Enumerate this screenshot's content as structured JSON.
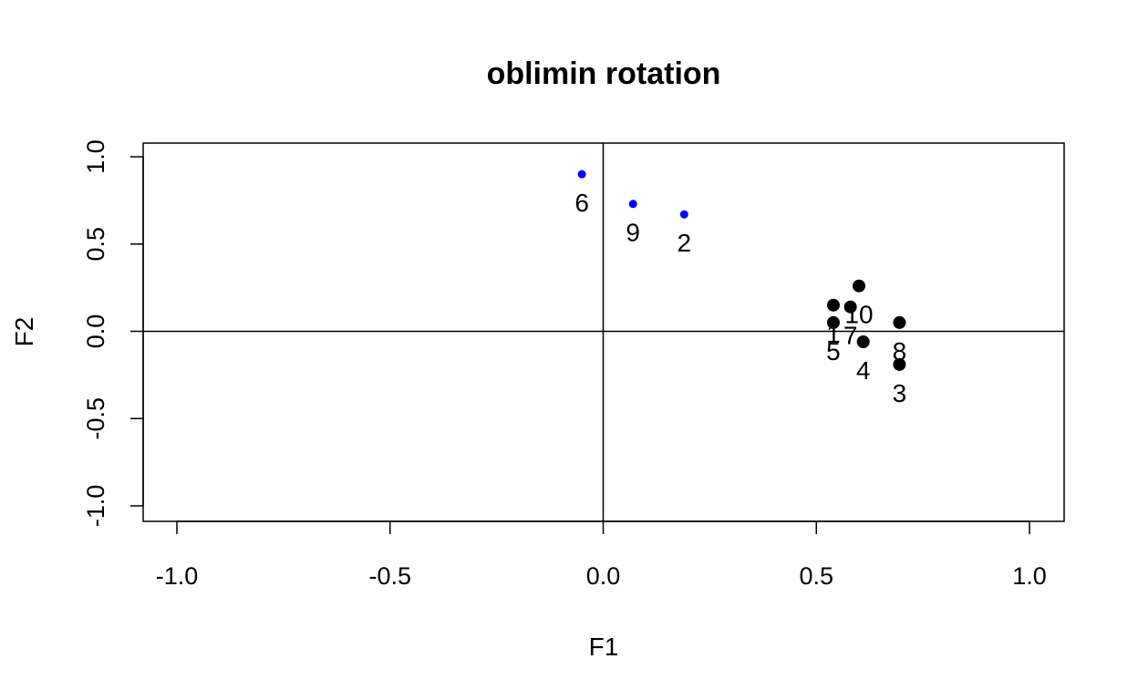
{
  "chart_data": {
    "type": "scatter",
    "title": "oblimin rotation",
    "xlabel": "F1",
    "ylabel": "F2",
    "xlim": [
      -1.0,
      1.0
    ],
    "ylim": [
      -1.0,
      1.0
    ],
    "xticks": [
      "-1.0",
      "-0.5",
      "0.0",
      "0.5",
      "1.0"
    ],
    "yticks": [
      "-1.0",
      "-0.5",
      "0.0",
      "0.5",
      "1.0"
    ],
    "reference_lines": {
      "x": 0,
      "y": 0
    },
    "grid": false,
    "colors": {
      "group_a": "#0000ff",
      "group_b": "#000000"
    },
    "points": [
      {
        "label": "6",
        "x": -0.05,
        "y": 0.9,
        "group": "group_a"
      },
      {
        "label": "9",
        "x": 0.07,
        "y": 0.73,
        "group": "group_a"
      },
      {
        "label": "2",
        "x": 0.19,
        "y": 0.67,
        "group": "group_a"
      },
      {
        "label": "10",
        "x": 0.6,
        "y": 0.26,
        "group": "group_b"
      },
      {
        "label": "1",
        "x": 0.54,
        "y": 0.15,
        "group": "group_b"
      },
      {
        "label": "7",
        "x": 0.58,
        "y": 0.14,
        "group": "group_b"
      },
      {
        "label": "5",
        "x": 0.54,
        "y": 0.05,
        "group": "group_b"
      },
      {
        "label": "8",
        "x": 0.695,
        "y": 0.05,
        "group": "group_b"
      },
      {
        "label": "4",
        "x": 0.61,
        "y": -0.06,
        "group": "group_b"
      },
      {
        "label": "3",
        "x": 0.695,
        "y": -0.19,
        "group": "group_b"
      }
    ]
  }
}
